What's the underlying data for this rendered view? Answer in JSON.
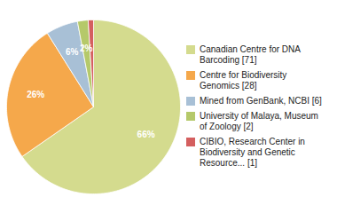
{
  "chart_data": {
    "type": "pie",
    "categories": [
      "Canadian Centre for DNA\nBarcoding [71]",
      "Centre for Biodiversity\nGenomics [28]",
      "Mined from GenBank, NCBI [6]",
      "University of Malaya, Museum\nof Zoology [2]",
      "CIBIO, Research Center in\nBiodiversity and Genetic\nResource... [1]"
    ],
    "values": [
      66,
      26,
      6,
      2,
      1
    ],
    "value_labels": [
      "66%",
      "26%",
      "6%",
      "2%",
      null
    ],
    "colors": [
      "#d4db8e",
      "#f5a84b",
      "#a8c0d6",
      "#b5c96a",
      "#d45f5f"
    ],
    "data_labels": true,
    "legend": "right"
  }
}
